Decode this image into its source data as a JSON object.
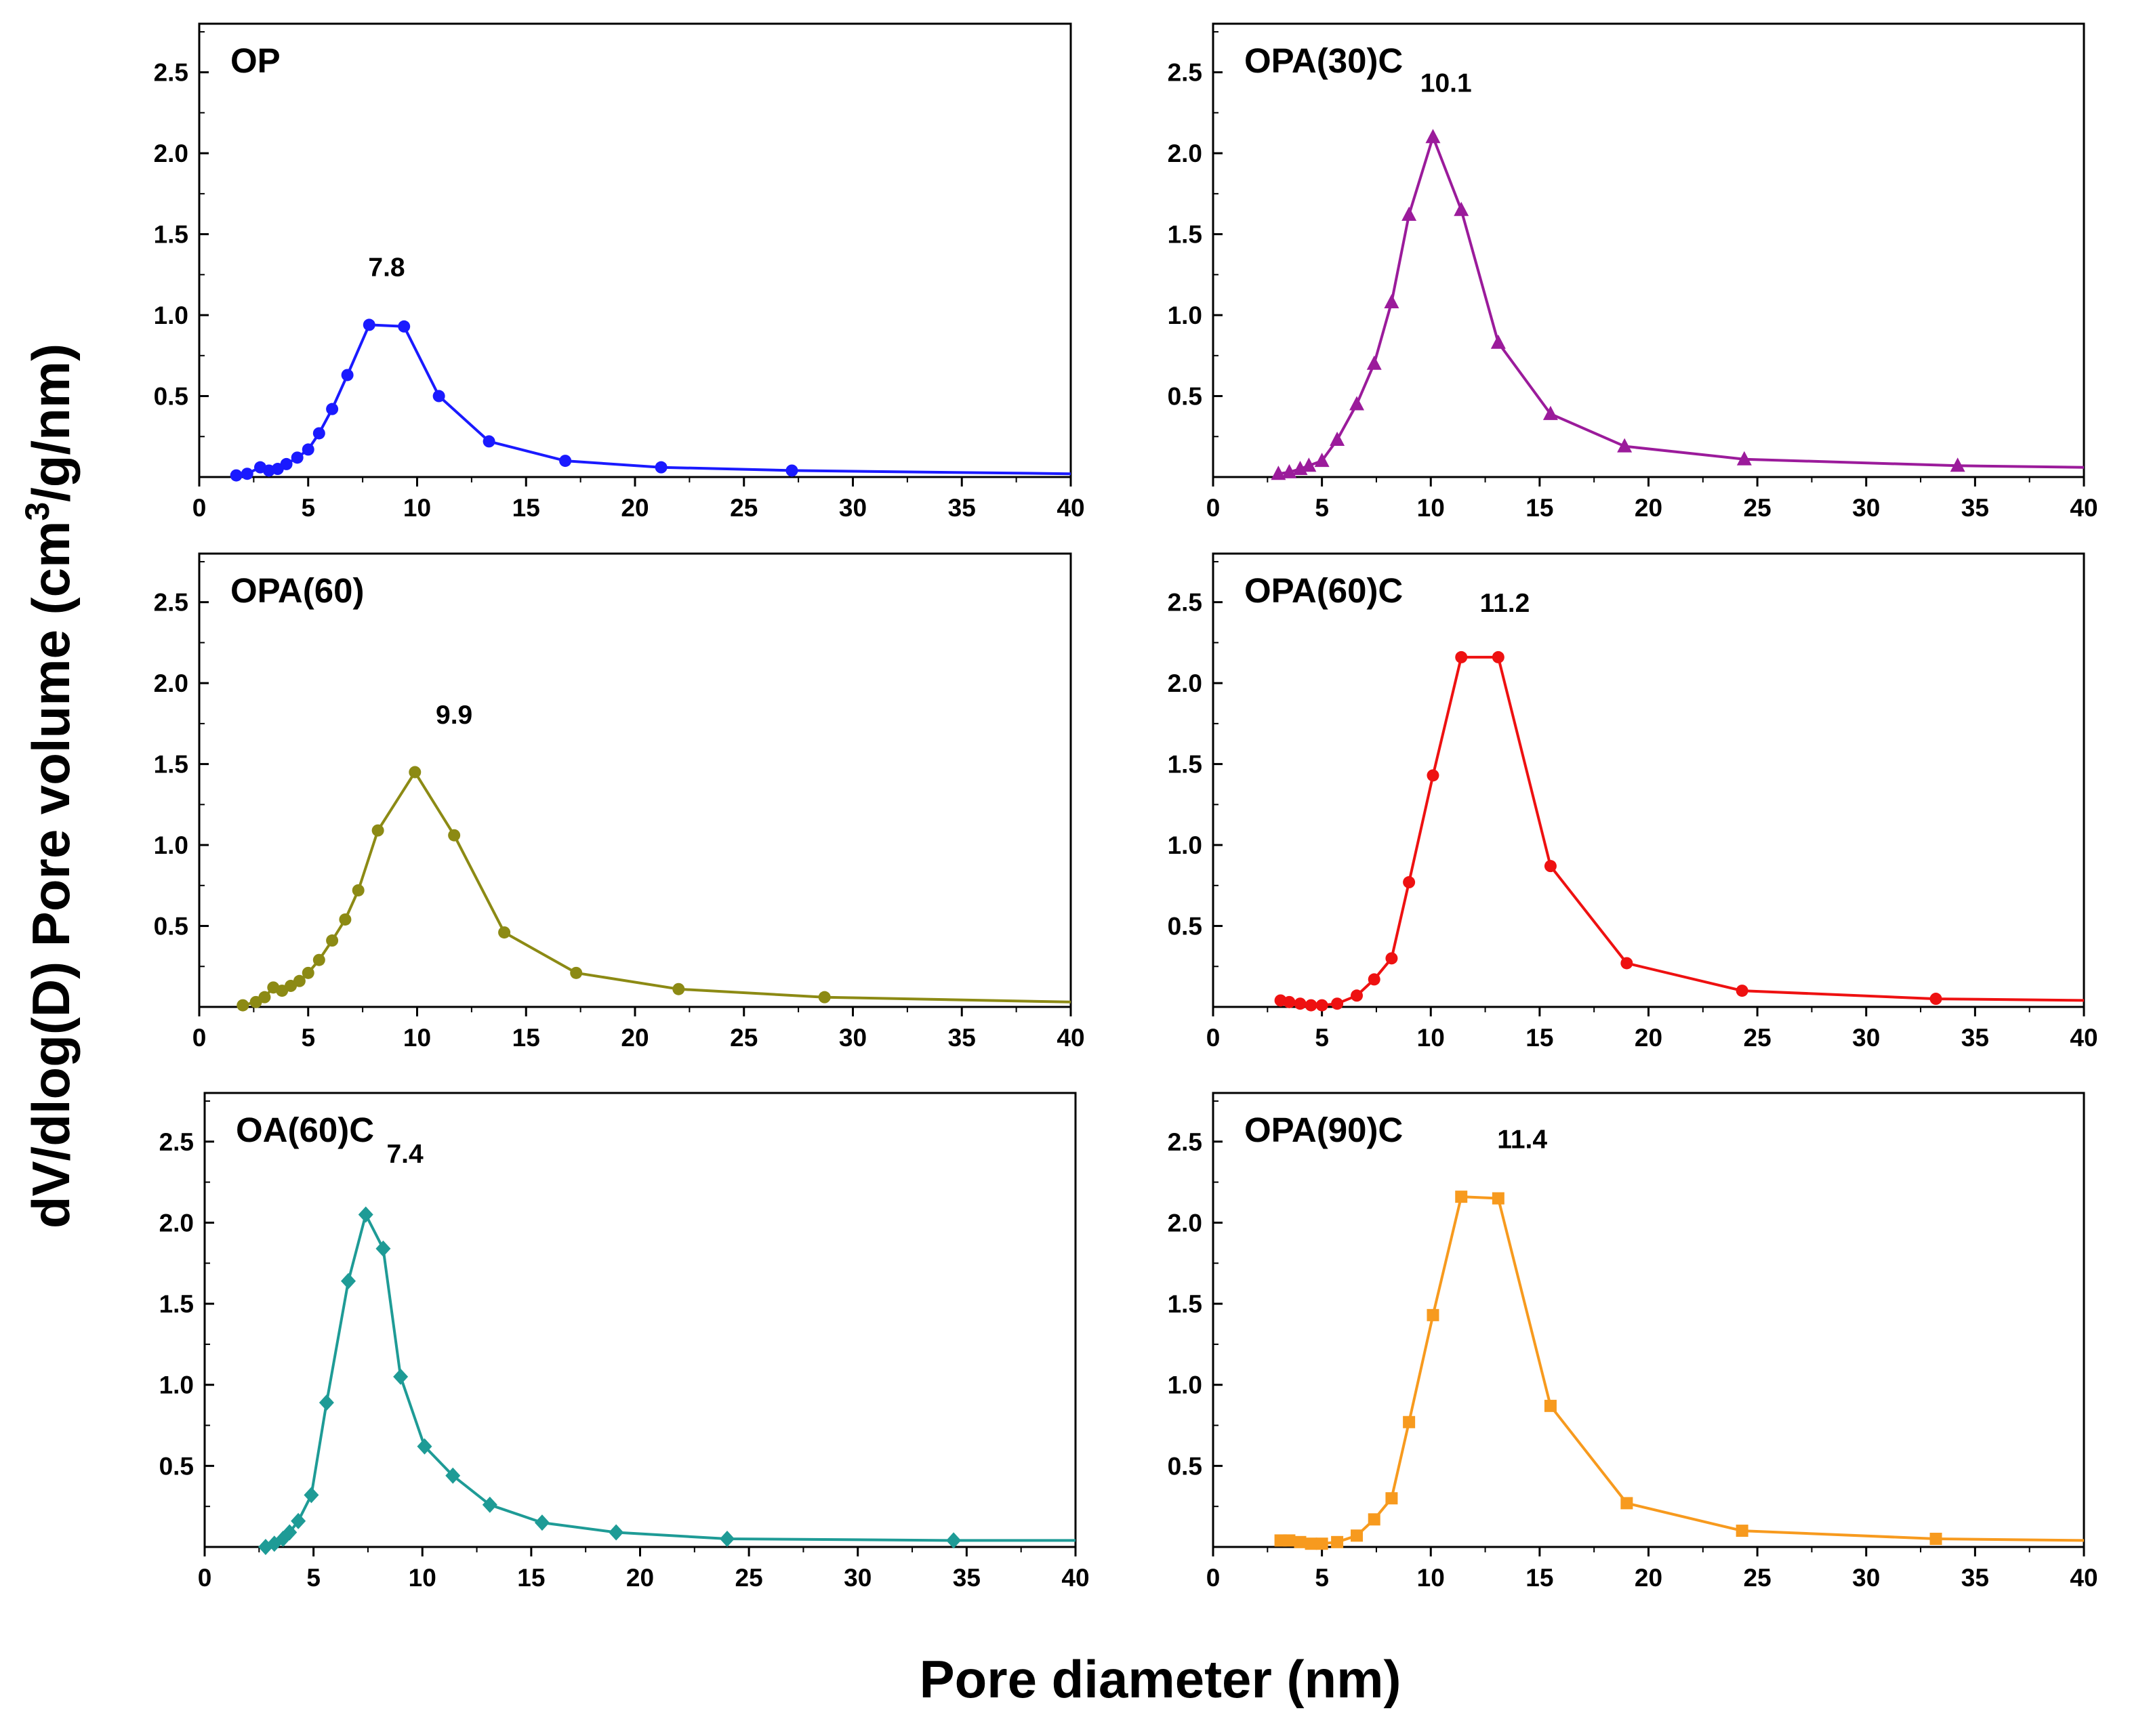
{
  "chart_data": {
    "type": "line",
    "xlabel": "Pore diameter (nm)",
    "ylabel_parts": [
      "dV/dlog(D) Pore volume (cm",
      "3",
      "/g/nm)"
    ],
    "xlim": [
      0,
      40
    ],
    "ylim": [
      0,
      2.8
    ],
    "xticks": [
      "0",
      "5",
      "10",
      "15",
      "20",
      "25",
      "30",
      "35",
      "40"
    ],
    "yticks": [
      "0.5",
      "1.0",
      "1.5",
      "2.0",
      "2.5"
    ],
    "panels": [
      {
        "name": "OP",
        "color": "#1a1aff",
        "marker": "circle",
        "peak_label": "7.8",
        "peak_x": 7.8,
        "x": [
          1.7,
          2.2,
          2.8,
          3.2,
          3.6,
          4.0,
          4.5,
          5.0,
          5.5,
          6.1,
          6.8,
          7.8,
          9.4,
          11.0,
          13.3,
          16.8,
          21.2,
          27.2,
          40.0
        ],
        "y": [
          0.01,
          0.02,
          0.06,
          0.04,
          0.05,
          0.08,
          0.12,
          0.17,
          0.27,
          0.42,
          0.63,
          0.94,
          0.93,
          0.5,
          0.22,
          0.1,
          0.06,
          0.04,
          0.02
        ]
      },
      {
        "name": "OPA(30)C",
        "color": "#9b1b9b",
        "marker": "triangle",
        "peak_label": "10.1",
        "peak_x": 10.1,
        "x": [
          3.0,
          3.5,
          4.0,
          4.4,
          5.0,
          5.7,
          6.6,
          7.4,
          8.2,
          9.0,
          10.1,
          11.4,
          13.1,
          15.5,
          18.9,
          24.4,
          34.2,
          40.0
        ],
        "y": [
          0.02,
          0.03,
          0.05,
          0.07,
          0.1,
          0.23,
          0.45,
          0.7,
          1.08,
          1.62,
          2.1,
          1.65,
          0.83,
          0.39,
          0.19,
          0.11,
          0.07,
          0.06
        ]
      },
      {
        "name": "OPA(60)",
        "color": "#8c8a14",
        "marker": "circle",
        "peak_label": "9.9",
        "peak_x": 9.9,
        "x": [
          2.0,
          2.6,
          3.0,
          3.4,
          3.8,
          4.2,
          4.6,
          5.0,
          5.5,
          6.1,
          6.7,
          7.3,
          8.2,
          9.9,
          11.7,
          14.0,
          17.3,
          22.0,
          28.7,
          40.0
        ],
        "y": [
          0.01,
          0.03,
          0.06,
          0.12,
          0.1,
          0.13,
          0.16,
          0.21,
          0.29,
          0.41,
          0.54,
          0.72,
          1.09,
          1.45,
          1.06,
          0.46,
          0.21,
          0.11,
          0.06,
          0.03
        ]
      },
      {
        "name": "OPA(60)C",
        "color": "#ee1111",
        "marker": "circle",
        "peak_label": "11.2",
        "peak_x": 11.2,
        "x": [
          3.1,
          3.5,
          4.0,
          4.5,
          5.0,
          5.7,
          6.6,
          7.4,
          8.2,
          9.0,
          10.1,
          11.4,
          13.1,
          15.5,
          19.0,
          24.3,
          33.2,
          40.0
        ],
        "y": [
          0.04,
          0.03,
          0.02,
          0.01,
          0.01,
          0.02,
          0.07,
          0.17,
          0.3,
          0.77,
          1.43,
          2.16,
          2.16,
          0.87,
          0.27,
          0.1,
          0.05,
          0.04
        ]
      },
      {
        "name": "OA(60)C",
        "color": "#1e9b96",
        "marker": "diamond",
        "peak_label": "7.4",
        "peak_x": 7.4,
        "x": [
          2.8,
          3.2,
          3.6,
          3.9,
          4.3,
          4.9,
          5.6,
          6.6,
          7.4,
          8.2,
          9.0,
          10.1,
          11.4,
          13.1,
          15.5,
          18.9,
          24.0,
          34.4,
          40.0
        ],
        "y": [
          0.0,
          0.02,
          0.05,
          0.09,
          0.16,
          0.32,
          0.89,
          1.64,
          2.05,
          1.84,
          1.05,
          0.62,
          0.44,
          0.26,
          0.15,
          0.09,
          0.05,
          0.04,
          0.04
        ]
      },
      {
        "name": "OPA(90)C",
        "color": "#f79a1e",
        "marker": "square",
        "peak_label": "11.4",
        "peak_x": 11.4,
        "x": [
          3.1,
          3.5,
          4.0,
          4.5,
          5.0,
          5.7,
          6.6,
          7.4,
          8.2,
          9.0,
          10.1,
          11.4,
          13.1,
          15.5,
          19.0,
          24.3,
          33.2,
          40.0
        ],
        "y": [
          0.04,
          0.04,
          0.03,
          0.02,
          0.02,
          0.03,
          0.07,
          0.17,
          0.3,
          0.77,
          1.43,
          2.16,
          2.15,
          0.87,
          0.27,
          0.1,
          0.05,
          0.04
        ]
      }
    ]
  }
}
